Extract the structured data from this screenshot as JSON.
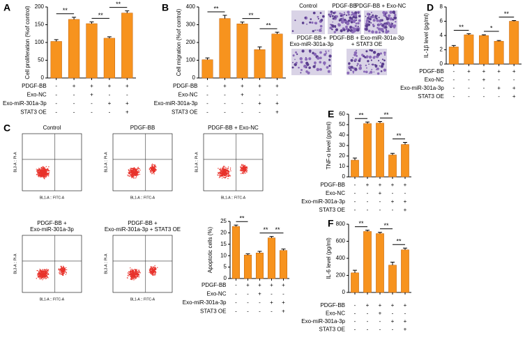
{
  "chart_data": [
    {
      "type": "bar",
      "panel": "A",
      "ylabel": "Cell proliferation (%of control)",
      "ylim": [
        0,
        200
      ],
      "yticks": [
        0,
        50,
        100,
        150,
        200
      ],
      "values": [
        103,
        165,
        153,
        112,
        183
      ],
      "errors": [
        5,
        6,
        5,
        4,
        6
      ],
      "color": "#f7931e",
      "brackets": [
        {
          "label": "**",
          "from": 0,
          "to": 1
        },
        {
          "label": "**",
          "from": 2,
          "to": 3
        },
        {
          "label": "**",
          "from": 3,
          "to": 4
        }
      ],
      "conditions": [
        {
          "label": "PDGF-BB",
          "marks": [
            "-",
            "+",
            "+",
            "+",
            "+"
          ]
        },
        {
          "label": "Exo-NC",
          "marks": [
            "-",
            "-",
            "+",
            "-",
            "-"
          ]
        },
        {
          "label": "Exo-miR-301a-3p",
          "marks": [
            "-",
            "-",
            "-",
            "+",
            "+"
          ]
        },
        {
          "label": "STAT3 OE",
          "marks": [
            "-",
            "-",
            "-",
            "-",
            "+"
          ]
        }
      ]
    },
    {
      "type": "bar",
      "panel": "B",
      "ylabel": "Cell migration (%of control)",
      "ylim": [
        0,
        400
      ],
      "yticks": [
        0,
        100,
        200,
        300,
        400
      ],
      "values": [
        103,
        335,
        305,
        160,
        248
      ],
      "errors": [
        10,
        18,
        10,
        15,
        10
      ],
      "color": "#f7931e",
      "brackets": [
        {
          "label": "**",
          "from": 0,
          "to": 1
        },
        {
          "label": "**",
          "from": 2,
          "to": 3
        },
        {
          "label": "**",
          "from": 3,
          "to": 4
        }
      ],
      "conditions": [
        {
          "label": "PDGF-BB",
          "marks": [
            "-",
            "+",
            "+",
            "+",
            "+"
          ]
        },
        {
          "label": "Exo-NC",
          "marks": [
            "-",
            "-",
            "+",
            "-",
            "-"
          ]
        },
        {
          "label": "Exo-miR-301a-3p",
          "marks": [
            "-",
            "-",
            "-",
            "+",
            "+"
          ]
        },
        {
          "label": "STAT3 OE",
          "marks": [
            "-",
            "-",
            "-",
            "-",
            "+"
          ]
        }
      ]
    },
    {
      "type": "bar",
      "ylabel": "Apoptotic cells (%)",
      "ylim": [
        0,
        25
      ],
      "yticks": [
        0,
        5,
        10,
        15,
        20,
        25
      ],
      "values": [
        22.8,
        10.3,
        11.2,
        17.8,
        12.3
      ],
      "errors": [
        0.6,
        0.5,
        0.7,
        0.6,
        0.6
      ],
      "color": "#f7931e",
      "brackets": [
        {
          "label": "**",
          "from": 0,
          "to": 1
        },
        {
          "label": "**",
          "from": 2,
          "to": 3
        },
        {
          "label": "**",
          "from": 3,
          "to": 4
        }
      ],
      "conditions": [
        {
          "label": "PDGF-BB",
          "marks": [
            "-",
            "+",
            "+",
            "+",
            "+"
          ]
        },
        {
          "label": "Exo-NC",
          "marks": [
            "-",
            "-",
            "+",
            "-",
            "-"
          ]
        },
        {
          "label": "Exo-miR-301a-3p",
          "marks": [
            "-",
            "-",
            "-",
            "+",
            "+"
          ]
        },
        {
          "label": "STAT3 OE",
          "marks": [
            "-",
            "-",
            "-",
            "-",
            "+"
          ]
        }
      ]
    },
    {
      "type": "bar",
      "panel": "D",
      "ylabel": "IL-1β level (pg/ml)",
      "ylim": [
        0,
        8
      ],
      "yticks": [
        0,
        2,
        4,
        6,
        8
      ],
      "values": [
        2.4,
        4.1,
        4.0,
        3.2,
        6.0
      ],
      "errors": [
        0.2,
        0.15,
        0.1,
        0.1,
        0.1
      ],
      "color": "#f7931e",
      "brackets": [
        {
          "label": "**",
          "from": 0,
          "to": 1
        },
        {
          "label": "*",
          "from": 2,
          "to": 3
        },
        {
          "label": "**",
          "from": 3,
          "to": 4
        }
      ],
      "conditions": [
        {
          "label": "PDGF-BB",
          "marks": [
            "-",
            "+",
            "+",
            "+",
            "+"
          ]
        },
        {
          "label": "Exo-NC",
          "marks": [
            "-",
            "-",
            "+",
            "-",
            "-"
          ]
        },
        {
          "label": "Exo-miR-301a-3p",
          "marks": [
            "-",
            "-",
            "-",
            "+",
            "+"
          ]
        },
        {
          "label": "STAT3 OE",
          "marks": [
            "-",
            "-",
            "-",
            "-",
            "+"
          ]
        }
      ]
    },
    {
      "type": "bar",
      "panel": "E",
      "ylabel": "TNF-α level (pg/ml)",
      "ylim": [
        0,
        60
      ],
      "yticks": [
        0,
        10,
        20,
        30,
        40,
        50,
        60
      ],
      "values": [
        16,
        51,
        51.5,
        21,
        31
      ],
      "errors": [
        2,
        1.5,
        1.5,
        1.5,
        2
      ],
      "color": "#f7931e",
      "brackets": [
        {
          "label": "**",
          "from": 0,
          "to": 1
        },
        {
          "label": "**",
          "from": 2,
          "to": 3
        },
        {
          "label": "**",
          "from": 3,
          "to": 4
        }
      ],
      "conditions": [
        {
          "label": "PDGF-BB",
          "marks": [
            "-",
            "+",
            "+",
            "+",
            "+"
          ]
        },
        {
          "label": "Exo-NC",
          "marks": [
            "-",
            "-",
            "+",
            "-",
            "-"
          ]
        },
        {
          "label": "Exo-miR-301a-3p",
          "marks": [
            "-",
            "-",
            "-",
            "+",
            "+"
          ]
        },
        {
          "label": "STAT3 OE",
          "marks": [
            "-",
            "-",
            "-",
            "-",
            "+"
          ]
        }
      ]
    },
    {
      "type": "bar",
      "panel": "F",
      "ylabel": "IL-6 level (pg/ml)",
      "ylim": [
        0,
        800
      ],
      "yticks": [
        0,
        200,
        400,
        600,
        800
      ],
      "values": [
        230,
        715,
        690,
        320,
        500
      ],
      "errors": [
        30,
        15,
        15,
        35,
        20
      ],
      "color": "#f7931e",
      "brackets": [
        {
          "label": "**",
          "from": 0,
          "to": 1
        },
        {
          "label": "**",
          "from": 2,
          "to": 3
        },
        {
          "label": "**",
          "from": 3,
          "to": 4
        }
      ],
      "conditions": [
        {
          "label": "PDGF-BB",
          "marks": [
            "-",
            "+",
            "+",
            "+",
            "+"
          ]
        },
        {
          "label": "Exo-NC",
          "marks": [
            "-",
            "-",
            "+",
            "-",
            "-"
          ]
        },
        {
          "label": "Exo-miR-301a-3p",
          "marks": [
            "-",
            "-",
            "-",
            "+",
            "+"
          ]
        },
        {
          "label": "STAT3 OE",
          "marks": [
            "-",
            "-",
            "-",
            "-",
            "+"
          ]
        }
      ]
    }
  ],
  "micrographs": [
    {
      "label": [
        "Control"
      ]
    },
    {
      "label": [
        "PDGF-BB"
      ]
    },
    {
      "label": [
        "PDGF-BB + Exo-NC"
      ]
    },
    {
      "label": [
        "PDGF-BB +",
        "Exo-miR-301a-3p"
      ]
    },
    {
      "label": [
        "PDGF-BB + Exo-miR-301a-3p",
        "+ STAT3 OE"
      ]
    }
  ],
  "flow_panel": {
    "panel": "C",
    "x_label": "BL1-A :: FITC-A",
    "y_label": "BL3-A :: PI-A",
    "plots": [
      {
        "title": [
          "Control"
        ]
      },
      {
        "title": [
          "PDGF-BB"
        ]
      },
      {
        "title": [
          "PDGF-BB + Exo-NC"
        ]
      },
      {
        "title": [
          "PDGF-BB +",
          "Exo-miR-301a-3p"
        ]
      },
      {
        "title": [
          "PDGF-BB +",
          "Exo-miR-301a-3p + STAT3 OE"
        ]
      }
    ]
  }
}
